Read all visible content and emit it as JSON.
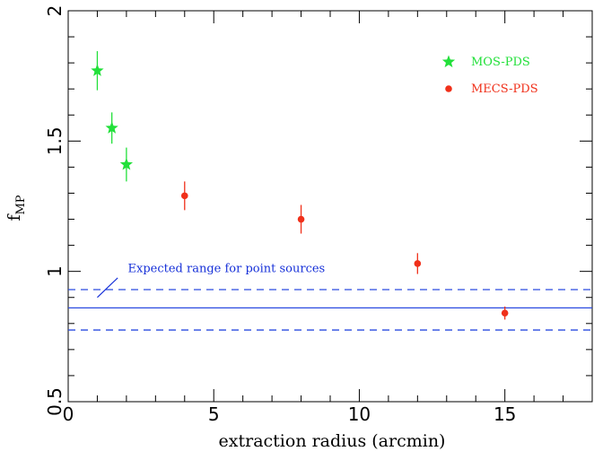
{
  "chart_data": {
    "type": "scatter",
    "xlabel": "extraction radius (arcmin)",
    "ylabel": "f",
    "ylabel_sub": "MP",
    "xlim": [
      0,
      18
    ],
    "ylim": [
      0.5,
      2
    ],
    "xticks": [
      0,
      5,
      10,
      15
    ],
    "yticks": [
      0.5,
      1,
      1.5,
      2
    ],
    "xtick_labels": [
      "0",
      "5",
      "10",
      "15"
    ],
    "ytick_labels": [
      "0.5",
      "1",
      "1.5",
      "2"
    ],
    "grid": false,
    "legend_position": "top-right",
    "series": [
      {
        "name": "MOS-PDS",
        "marker": "star",
        "color": "#22e03a",
        "points": [
          {
            "x": 1.0,
            "y": 1.77,
            "yerr": 0.075
          },
          {
            "x": 1.5,
            "y": 1.55,
            "yerr": 0.06
          },
          {
            "x": 2.0,
            "y": 1.41,
            "yerr": 0.065
          }
        ]
      },
      {
        "name": "MECS-PDS",
        "marker": "circle",
        "color": "#f0301a",
        "points": [
          {
            "x": 4.0,
            "y": 1.29,
            "yerr": 0.055
          },
          {
            "x": 8.0,
            "y": 1.2,
            "yerr": 0.055
          },
          {
            "x": 12.0,
            "y": 1.03,
            "yerr": 0.04
          },
          {
            "x": 15.0,
            "y": 0.84,
            "yerr": 0.025
          }
        ]
      }
    ],
    "reference_lines": {
      "color": "#2a4be0",
      "center": 0.86,
      "lower": 0.775,
      "upper": 0.93
    },
    "annotation": {
      "text": "Expected range for point sources",
      "color": "#1630d8",
      "text_x": 2.05,
      "text_y": 1.0,
      "arrow_from": [
        1.7,
        0.975
      ],
      "arrow_to": [
        1.0,
        0.9
      ]
    }
  }
}
